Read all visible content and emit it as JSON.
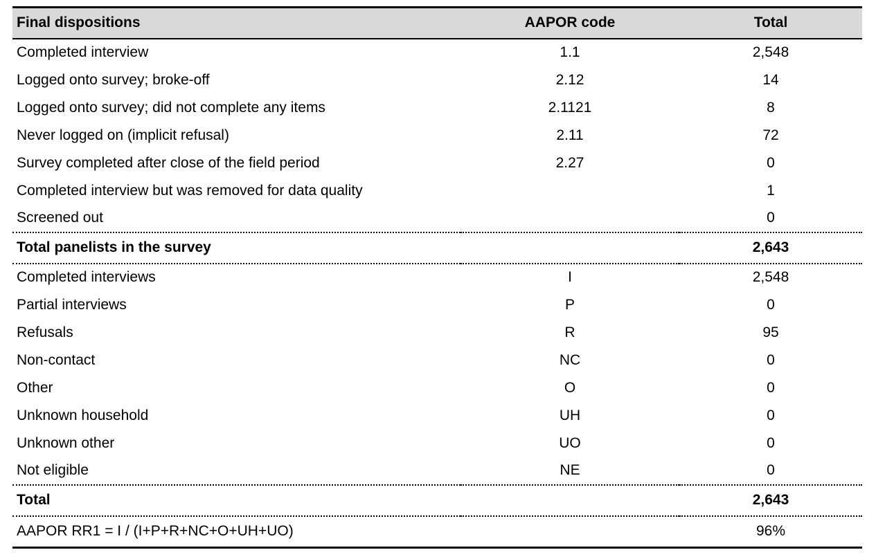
{
  "table": {
    "columns": {
      "dispositions": "Final dispositions",
      "code": "AAPOR code",
      "total": "Total"
    },
    "rows": [
      {
        "label": "Completed interview",
        "code": "1.1",
        "total": "2,548",
        "bold": false,
        "separator_above": false
      },
      {
        "label": "Logged onto survey; broke-off",
        "code": "2.12",
        "total": "14",
        "bold": false,
        "separator_above": false
      },
      {
        "label": "Logged onto survey; did not complete any items",
        "code": "2.1121",
        "total": "8",
        "bold": false,
        "separator_above": false
      },
      {
        "label": "Never logged on (implicit refusal)",
        "code": "2.11",
        "total": "72",
        "bold": false,
        "separator_above": false
      },
      {
        "label": "Survey completed after close of the field period",
        "code": "2.27",
        "total": "0",
        "bold": false,
        "separator_above": false
      },
      {
        "label": "Completed interview but was removed for data quality",
        "code": "",
        "total": "1",
        "bold": false,
        "separator_above": false
      },
      {
        "label": "Screened out",
        "code": "",
        "total": "0",
        "bold": false,
        "separator_above": false
      },
      {
        "label": "Total panelists in the survey",
        "code": "",
        "total": "2,643",
        "bold": true,
        "separator_above": true
      },
      {
        "label": "Completed interviews",
        "code": "I",
        "total": "2,548",
        "bold": false,
        "separator_above": true
      },
      {
        "label": "Partial interviews",
        "code": "P",
        "total": "0",
        "bold": false,
        "separator_above": false
      },
      {
        "label": "Refusals",
        "code": "R",
        "total": "95",
        "bold": false,
        "separator_above": false
      },
      {
        "label": "Non-contact",
        "code": "NC",
        "total": "0",
        "bold": false,
        "separator_above": false
      },
      {
        "label": "Other",
        "code": "O",
        "total": "0",
        "bold": false,
        "separator_above": false
      },
      {
        "label": "Unknown household",
        "code": "UH",
        "total": "0",
        "bold": false,
        "separator_above": false
      },
      {
        "label": "Unknown other",
        "code": "UO",
        "total": "0",
        "bold": false,
        "separator_above": false
      },
      {
        "label": "Not eligible",
        "code": "NE",
        "total": "0",
        "bold": false,
        "separator_above": false
      },
      {
        "label": "Total",
        "code": "",
        "total": "2,643",
        "bold": true,
        "separator_above": true
      },
      {
        "label": "AAPOR RR1 = I / (I+P+R+NC+O+UH+UO)",
        "code": "",
        "total": "96%",
        "bold": false,
        "separator_above": true
      }
    ],
    "colors": {
      "header_bg": "#d9d9d9",
      "border": "#000000",
      "text": "#000000"
    }
  }
}
